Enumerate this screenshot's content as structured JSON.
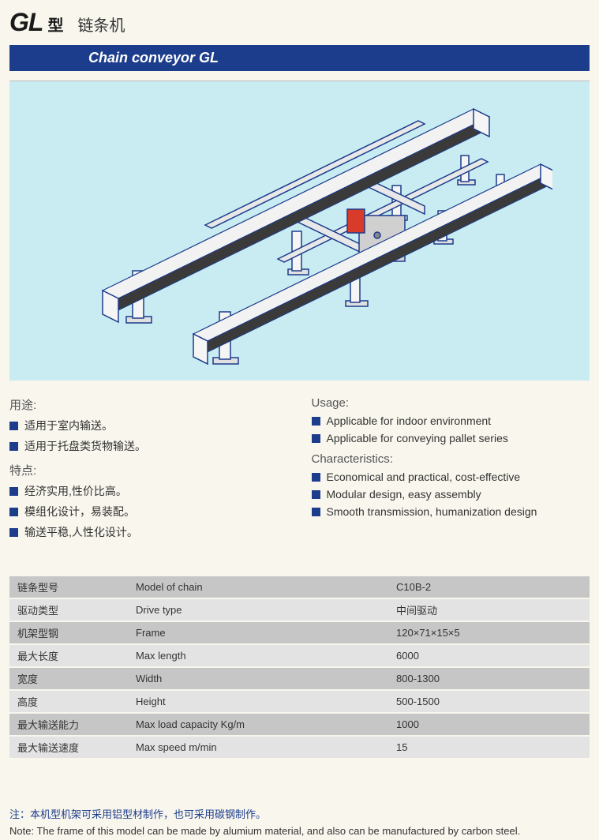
{
  "header": {
    "model_prefix": "GL",
    "model_suffix": "型",
    "cn_name": "链条机"
  },
  "banner": "Chain conveyor GL",
  "left": {
    "usage_title": "用途:",
    "usage_items": [
      "适用于室内输送。",
      "适用于托盘类货物输送。"
    ],
    "char_title": "特点:",
    "char_items": [
      "经济实用,性价比高。",
      "模组化设计，易装配。",
      "输送平稳,人性化设计。"
    ]
  },
  "right": {
    "usage_title": "Usage:",
    "usage_items": [
      "Applicable for indoor environment",
      "Applicable for conveying pallet series"
    ],
    "char_title": "Characteristics:",
    "char_items": [
      "Economical and practical, cost-effective",
      "Modular design, easy assembly",
      "Smooth transmission, humanization design"
    ]
  },
  "table": {
    "rows": [
      [
        "链条型号",
        "Model of chain",
        "C10B-2"
      ],
      [
        "驱动类型",
        "Drive type",
        "中间驱动"
      ],
      [
        "机架型钢",
        "Frame",
        "120×71×15×5"
      ],
      [
        "最大长度",
        "Max length",
        "6000"
      ],
      [
        "宽度",
        "Width",
        "800-1300"
      ],
      [
        "高度",
        "Height",
        "500-1500"
      ],
      [
        "最大输送能力",
        "Max load capacity Kg/m",
        "1000"
      ],
      [
        "最大输送速度",
        "Max speed m/min",
        "15"
      ]
    ]
  },
  "notes": {
    "cn": "注：本机型机架可采用铝型材制作，也可采用碳钢制作。",
    "en": "Note: The frame of this model can be made by alumium material, and also can be manufactured by carbon steel."
  },
  "diagram": {
    "rail_color": "#3a3a3a",
    "rail_top": "#f2f2f2",
    "leg_fill": "#f5f5f5",
    "leg_stroke": "#1c3c8c",
    "cross_fill": "#e8e8e8",
    "motor_body": "#d0d0d0",
    "motor_red": "#d93b2b",
    "foot_fill": "#e0e0e0",
    "bg": "#c9ecf2"
  }
}
